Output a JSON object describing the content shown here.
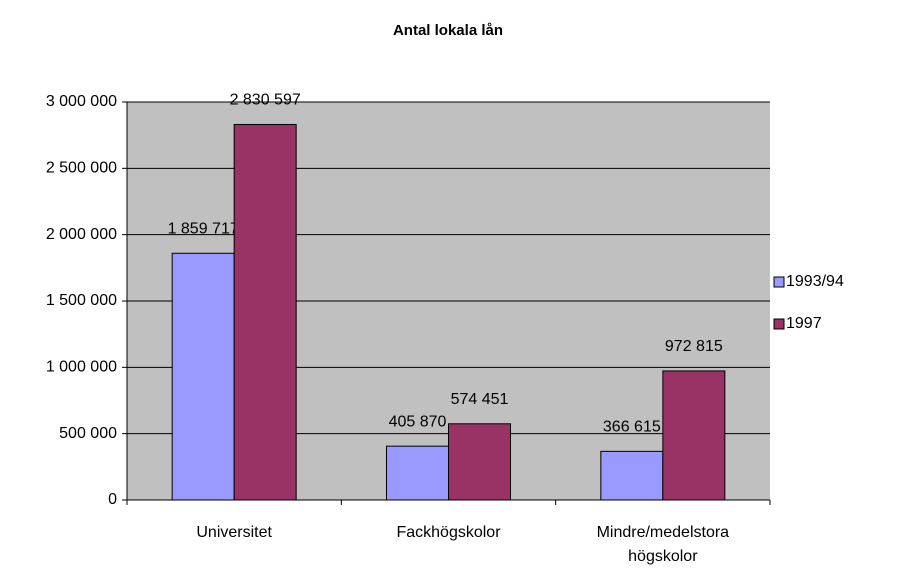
{
  "chart_data": {
    "type": "bar",
    "title": "Antal lokala lån",
    "categories": [
      "Universitet",
      "Fackhögskolor",
      "Mindre/medelstora högskolor"
    ],
    "series": [
      {
        "name": "1993/94",
        "color": "#9999ff",
        "values": [
          1859717,
          405870,
          366615
        ],
        "value_labels": [
          "1 859 717",
          "405 870",
          "366 615"
        ]
      },
      {
        "name": "1997",
        "color": "#993366",
        "values": [
          2830597,
          574451,
          972815
        ],
        "value_labels": [
          "2 830 597",
          "574 451",
          "972 815"
        ]
      }
    ],
    "ylim": [
      0,
      3000000
    ],
    "yticks": [
      {
        "value": 0,
        "label": "0"
      },
      {
        "value": 500000,
        "label": "500 000"
      },
      {
        "value": 1000000,
        "label": "1 000 000"
      },
      {
        "value": 1500000,
        "label": "1 500 000"
      },
      {
        "value": 2000000,
        "label": "2 000 000"
      },
      {
        "value": 2500000,
        "label": "2 500 000"
      },
      {
        "value": 3000000,
        "label": "3 000 000"
      }
    ],
    "grid": true,
    "plot_background": "#c0c0c0",
    "legend": "right"
  }
}
